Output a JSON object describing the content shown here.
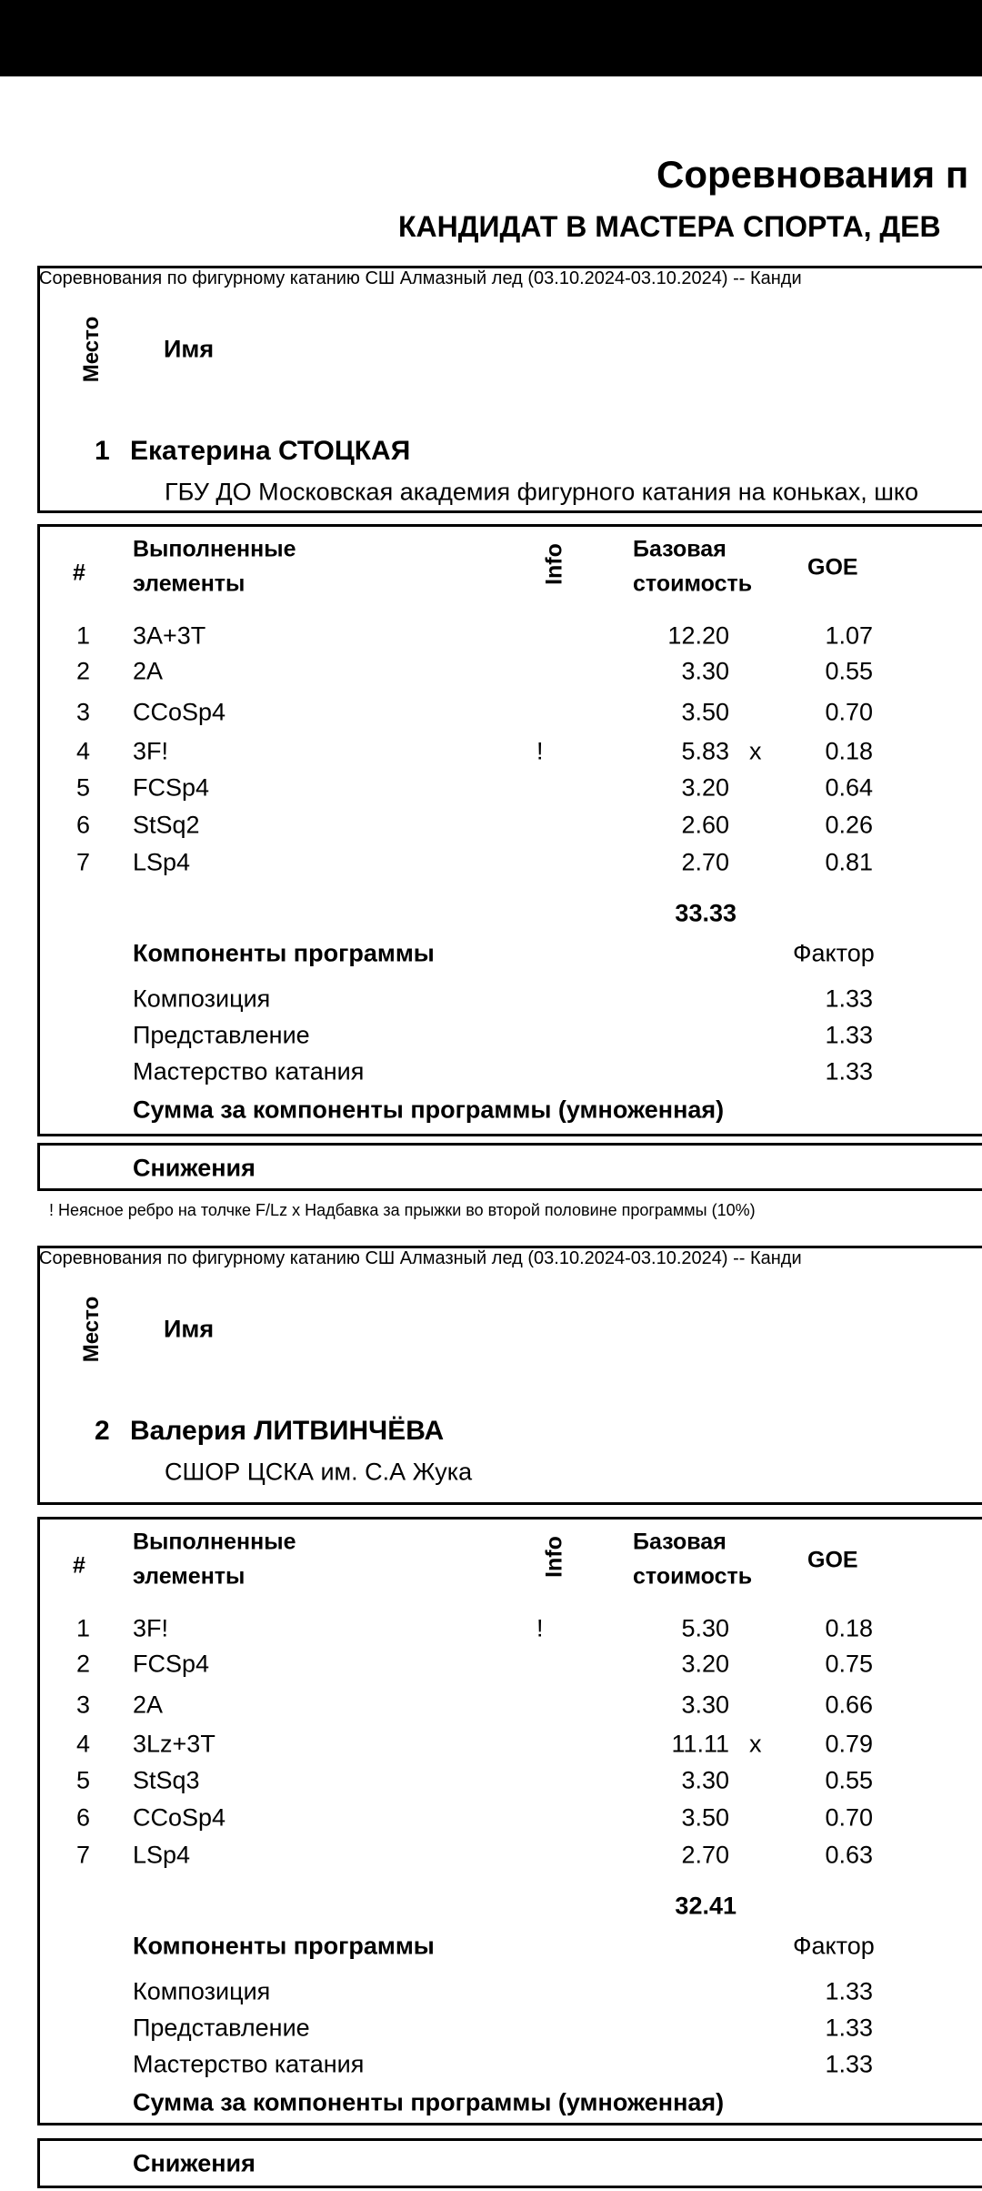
{
  "title": "Соревнования п",
  "subtitle": "КАНДИДАТ В МАСТЕРА СПОРТА, ДЕВ",
  "event_line": "Соревнования по фигурному катанию СШ Алмазный лед (03.10.2024-03.10.2024)  --  Канди",
  "labels": {
    "place": "Место",
    "name": "Имя",
    "num": "#",
    "elements_1": "Выполненные",
    "elements_2": "элементы",
    "info": "Info",
    "base_1": "Базовая",
    "base_2": "стоимость",
    "goe": "GOE",
    "components": "Компоненты программы",
    "factor": "Фактор",
    "components_sum": "Сумма за компоненты программы (умноженная)",
    "deductions": "Снижения"
  },
  "footnote": "! Неясное ребро на толчке F/Lz   x Надбавка за прыжки во второй половине программы (10%)",
  "skaters": [
    {
      "place": "1",
      "name": "Екатерина СТОЦКАЯ",
      "club": "ГБУ ДО Московская академия фигурного катания на коньках, шко",
      "elements": [
        {
          "n": "1",
          "el": "3A+3T",
          "info": "",
          "base": "12.20",
          "x": "",
          "goe": "1.07"
        },
        {
          "n": "2",
          "el": "2A",
          "info": "",
          "base": "3.30",
          "x": "",
          "goe": "0.55"
        },
        {
          "n": "3",
          "el": "CCoSp4",
          "info": "",
          "base": "3.50",
          "x": "",
          "goe": "0.70"
        },
        {
          "n": "4",
          "el": "3F!",
          "info": "!",
          "base": "5.83",
          "x": "x",
          "goe": "0.18"
        },
        {
          "n": "5",
          "el": "FCSp4",
          "info": "",
          "base": "3.20",
          "x": "",
          "goe": "0.64"
        },
        {
          "n": "6",
          "el": "StSq2",
          "info": "",
          "base": "2.60",
          "x": "",
          "goe": "0.26"
        },
        {
          "n": "7",
          "el": "LSp4",
          "info": "",
          "base": "2.70",
          "x": "",
          "goe": "0.81"
        }
      ],
      "base_total": "33.33",
      "components": [
        {
          "name": "Композиция",
          "factor": "1.33"
        },
        {
          "name": "Представление",
          "factor": "1.33"
        },
        {
          "name": "Мастерство катания",
          "factor": "1.33"
        }
      ]
    },
    {
      "place": "2",
      "name": "Валерия ЛИТВИНЧЁВА",
      "club": "СШОР ЦСКА им. С.А Жука",
      "elements": [
        {
          "n": "1",
          "el": "3F!",
          "info": "!",
          "base": "5.30",
          "x": "",
          "goe": "0.18"
        },
        {
          "n": "2",
          "el": "FCSp4",
          "info": "",
          "base": "3.20",
          "x": "",
          "goe": "0.75"
        },
        {
          "n": "3",
          "el": "2A",
          "info": "",
          "base": "3.30",
          "x": "",
          "goe": "0.66"
        },
        {
          "n": "4",
          "el": "3Lz+3T",
          "info": "",
          "base": "11.11",
          "x": "x",
          "goe": "0.79"
        },
        {
          "n": "5",
          "el": "StSq3",
          "info": "",
          "base": "3.30",
          "x": "",
          "goe": "0.55"
        },
        {
          "n": "6",
          "el": "CCoSp4",
          "info": "",
          "base": "3.50",
          "x": "",
          "goe": "0.70"
        },
        {
          "n": "7",
          "el": "LSp4",
          "info": "",
          "base": "2.70",
          "x": "",
          "goe": "0.63"
        }
      ],
      "base_total": "32.41",
      "components": [
        {
          "name": "Композиция",
          "factor": "1.33"
        },
        {
          "name": "Представление",
          "factor": "1.33"
        },
        {
          "name": "Мастерство катания",
          "factor": "1.33"
        }
      ]
    }
  ]
}
